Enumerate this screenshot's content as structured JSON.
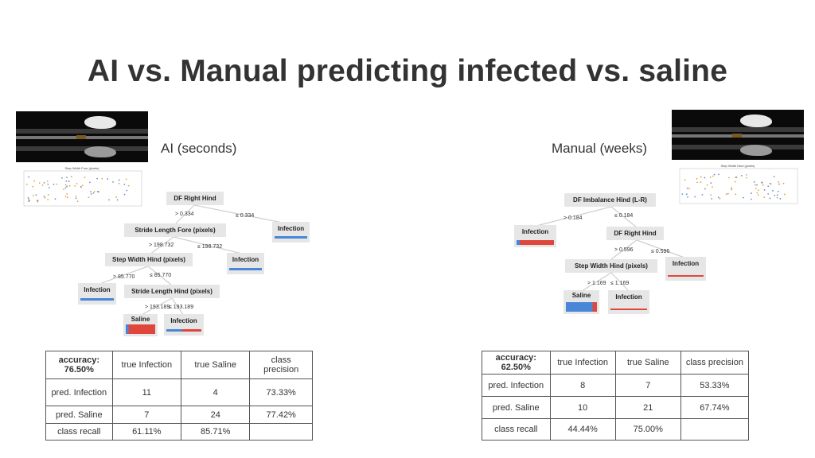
{
  "title": "AI vs. Manual predicting infected vs. saline",
  "left": {
    "label": "AI (seconds)",
    "scatter_title": "Step Width Fore (pixels)",
    "tree": {
      "nodes": [
        "DF Right Hind",
        "Stride Length Fore (pixels)",
        "Step Width Hind (pixels)",
        "Stride Length Hind (pixels)"
      ],
      "edges": [
        "> 0.334",
        "≤ 0.334",
        "> 198.732",
        "≤ 198.732",
        "> 85.770",
        "≤ 85.770",
        "> 193.189",
        "≤ 193.189"
      ],
      "leaves": [
        "Infection",
        "Infection",
        "Infection",
        "Saline",
        "Infection"
      ]
    },
    "table": {
      "header": [
        "accuracy: 76.50%",
        "true Infection",
        "true Saline",
        "class precision"
      ],
      "rows": [
        [
          "pred. Infection",
          "11",
          "4",
          "73.33%"
        ],
        [
          "pred. Saline",
          "7",
          "24",
          "77.42%"
        ],
        [
          "class recall",
          "61.11%",
          "85.71%",
          ""
        ]
      ]
    }
  },
  "right": {
    "label": "Manual (weeks)",
    "scatter_title": "Step Width Hind (pixels)",
    "tree": {
      "nodes": [
        "DF Imbalance Hind (L-R)",
        "DF Right Hind",
        "Step Width Hind (pixels)"
      ],
      "edges": [
        "> 0.184",
        "≤ 0.184",
        "> 0.596",
        "≤ 0.596",
        "> 1.169",
        "≤ 1.169"
      ],
      "leaves": [
        "Infection",
        "Infection",
        "Saline",
        "Infection"
      ]
    },
    "table": {
      "header": [
        "accuracy: 62.50%",
        "true Infection",
        "true Saline",
        "class precision"
      ],
      "rows": [
        [
          "pred. Infection",
          "8",
          "7",
          "53.33%"
        ],
        [
          "pred. Saline",
          "10",
          "21",
          "67.74%"
        ],
        [
          "class recall",
          "44.44%",
          "75.00%",
          ""
        ]
      ]
    }
  },
  "colors": {
    "infection": "#e0473c",
    "saline": "#4a86d8"
  }
}
